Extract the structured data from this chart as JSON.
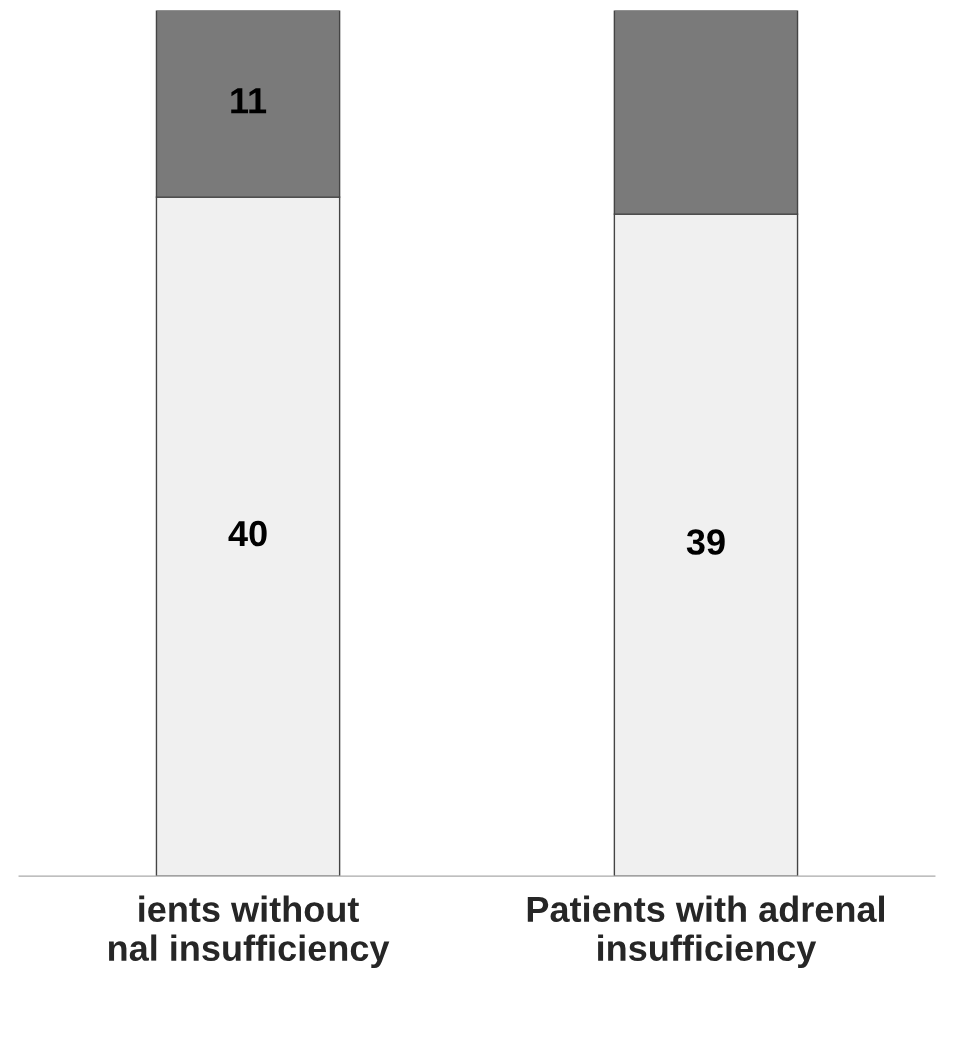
{
  "chart_data": {
    "type": "bar",
    "stacked": true,
    "categories": [
      "ients without\nnal insufficiency",
      "Patients with adrenal\ninsufficiency"
    ],
    "tick_labels": "x",
    "series": [
      {
        "color": "#f0f0f0",
        "values": [
          40,
          39
        ],
        "value_labels": [
          "40",
          "39"
        ]
      },
      {
        "color": "#7a7a7a",
        "values": [
          11,
          12
        ],
        "value_labels": [
          "11",
          null
        ]
      }
    ]
  }
}
